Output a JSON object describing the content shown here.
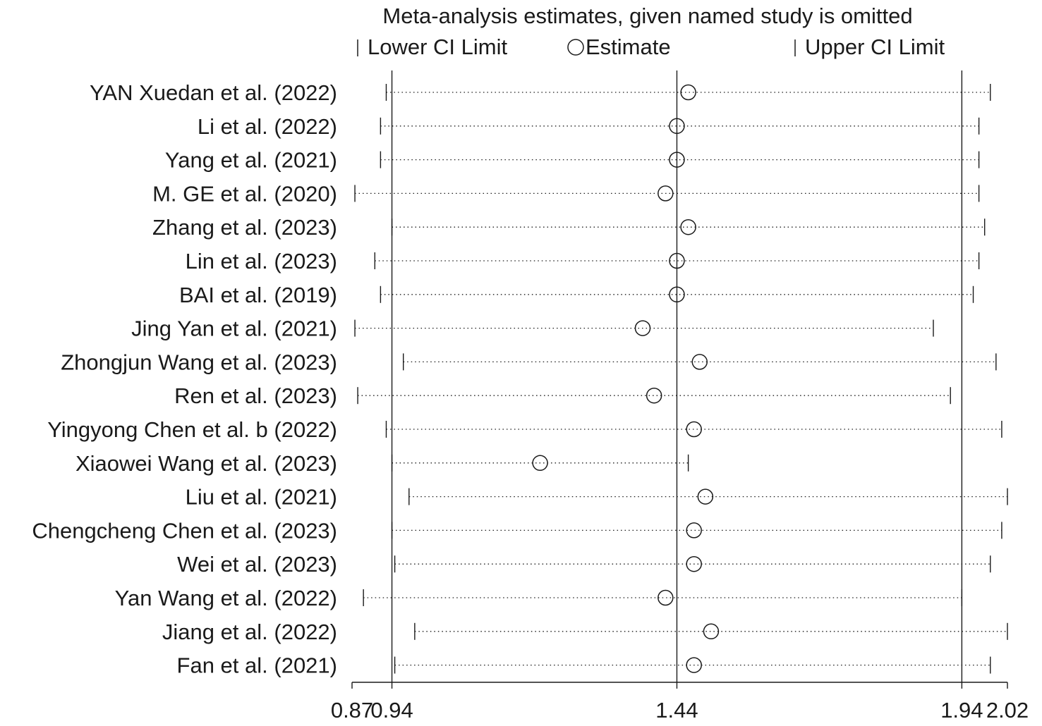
{
  "chart_data": {
    "type": "scatter",
    "title": "Meta-analysis estimates, given named study is omitted",
    "legend": {
      "placement": "top",
      "lower": "Lower CI Limit",
      "estimate": "Estimate",
      "upper": "Upper CI Limit"
    },
    "xlim": [
      0.87,
      2.02
    ],
    "x_ticks": [
      {
        "value": 0.87,
        "label": "0.87"
      },
      {
        "value": 0.94,
        "label": "0.94"
      },
      {
        "value": 1.44,
        "label": "1.44"
      },
      {
        "value": 1.94,
        "label": "1.94"
      },
      {
        "value": 2.02,
        "label": "2.02"
      }
    ],
    "reference_lines": [
      0.94,
      1.44,
      1.94
    ],
    "studies": [
      {
        "label": "YAN Xuedan et al. (2022)",
        "lower": 0.93,
        "estimate": 1.46,
        "upper": 1.99
      },
      {
        "label": "Li et al.  (2022)",
        "lower": 0.92,
        "estimate": 1.44,
        "upper": 1.97
      },
      {
        "label": "Yang et al.  (2021)",
        "lower": 0.92,
        "estimate": 1.44,
        "upper": 1.97
      },
      {
        "label": "M. GE et al.  (2020)",
        "lower": 0.875,
        "estimate": 1.42,
        "upper": 1.97
      },
      {
        "label": "Zhang et al.  (2023)",
        "lower": 0.94,
        "estimate": 1.46,
        "upper": 1.98
      },
      {
        "label": "Lin et al. (2023)",
        "lower": 0.91,
        "estimate": 1.44,
        "upper": 1.97
      },
      {
        "label": "BAI et al. (2019)",
        "lower": 0.92,
        "estimate": 1.44,
        "upper": 1.96
      },
      {
        "label": "Jing Yan et al. (2021)",
        "lower": 0.875,
        "estimate": 1.38,
        "upper": 1.89
      },
      {
        "label": "Zhongjun Wang et al. (2023)",
        "lower": 0.96,
        "estimate": 1.48,
        "upper": 2.0
      },
      {
        "label": "Ren et al.  (2023)",
        "lower": 0.88,
        "estimate": 1.4,
        "upper": 1.92
      },
      {
        "label": "Yingyong Chen et al. b (2022)",
        "lower": 0.93,
        "estimate": 1.47,
        "upper": 2.01
      },
      {
        "label": "Xiaowei Wang  et al.  (2023)",
        "lower": 0.94,
        "estimate": 1.2,
        "upper": 1.46
      },
      {
        "label": "Liu et al. (2021)",
        "lower": 0.97,
        "estimate": 1.49,
        "upper": 2.02
      },
      {
        "label": "Chengcheng Chen et al. (2023)",
        "lower": 0.94,
        "estimate": 1.47,
        "upper": 2.01
      },
      {
        "label": "Wei et al. (2023)",
        "lower": 0.945,
        "estimate": 1.47,
        "upper": 1.99
      },
      {
        "label": "Yan Wang et al. (2022)",
        "lower": 0.89,
        "estimate": 1.42,
        "upper": 1.94
      },
      {
        "label": "Jiang et al. (2022)",
        "lower": 0.98,
        "estimate": 1.5,
        "upper": 2.02
      },
      {
        "label": "Fan et al. (2021)",
        "lower": 0.945,
        "estimate": 1.47,
        "upper": 1.99
      }
    ]
  }
}
